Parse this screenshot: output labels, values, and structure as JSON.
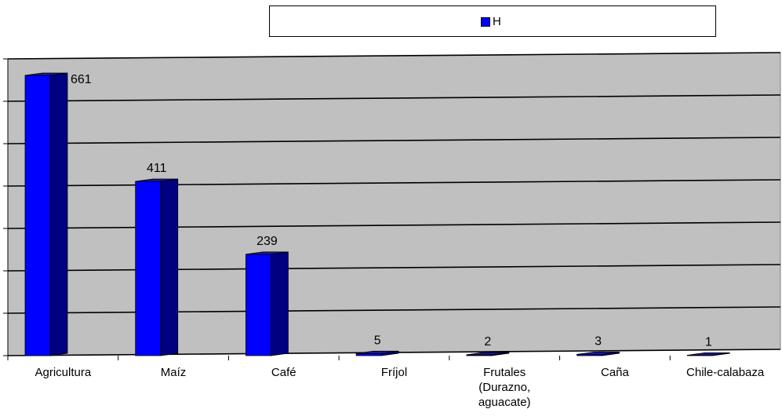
{
  "legend": {
    "label": "H",
    "color": "#0000ff"
  },
  "colors": {
    "plot_bg": "#c0c0c0",
    "bar_front": "#0000ff",
    "bar_side": "#000080",
    "bar_top": "#1a1aa0"
  },
  "chart_data": {
    "type": "bar",
    "categories": [
      "Agricultura",
      "Maíz",
      "Café",
      "Fríjol",
      "Frutales\n(Durazno,\naguacate)",
      "Caña",
      "Chile-calabaza"
    ],
    "series": [
      {
        "name": "H",
        "values": [
          661,
          411,
          239,
          5,
          2,
          3,
          1
        ]
      }
    ],
    "data_labels": [
      "661",
      "411",
      "239",
      "5",
      "2",
      "3",
      "1"
    ],
    "ylim": [
      0,
      700
    ],
    "grid": true,
    "legend_position": "top"
  }
}
